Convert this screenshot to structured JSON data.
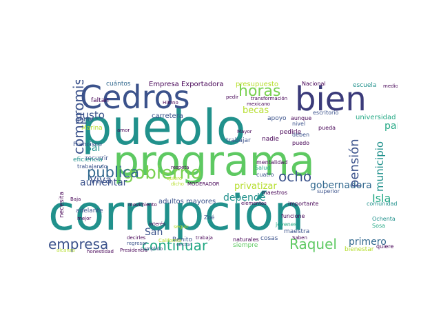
{
  "palette": {
    "purple": "#440154",
    "indigo": "#3b528b",
    "teal": "#21918c",
    "green": "#5ec962",
    "lime": "#b5de2b",
    "yellow": "#e5e419",
    "blue": "#31688e",
    "darkblue": "#2c3e7a"
  },
  "words": [
    {
      "text": "corrupción",
      "color": "#21918c"
    },
    {
      "text": "pueblo",
      "color": "#21918c"
    },
    {
      "text": "programa",
      "color": "#5ec962"
    },
    {
      "text": "Cedros",
      "color": "#3b528b"
    },
    {
      "text": "bien",
      "color": "#3b3b7a"
    },
    {
      "text": "gobierno",
      "color": "#7ad151"
    },
    {
      "text": "horas",
      "color": "#7ad151"
    },
    {
      "text": "compromiso",
      "color": "#3b528b"
    },
    {
      "text": "empresa",
      "color": "#3b528b"
    },
    {
      "text": "continuar",
      "color": "#22a884"
    },
    {
      "text": "Raquel",
      "color": "#5ec962"
    },
    {
      "text": "pública",
      "color": "#31688e"
    },
    {
      "text": "pensión",
      "color": "#3b528b"
    },
    {
      "text": "ocho",
      "color": "#3b528b"
    },
    {
      "text": "gobernadora",
      "color": "#31688e"
    },
    {
      "text": "Isla",
      "color": "#22a884"
    },
    {
      "text": "primero",
      "color": "#31688e"
    },
    {
      "text": "municipio",
      "color": "#21918c"
    },
    {
      "text": "país",
      "color": "#22a884"
    },
    {
      "text": "privatizar",
      "color": "#b5de2b"
    },
    {
      "text": "depende",
      "color": "#21918c"
    },
    {
      "text": "aumentar",
      "color": "#3b528b"
    },
    {
      "text": "gusto",
      "color": "#3b528b"
    },
    {
      "text": "Viva",
      "color": "#3b528b"
    },
    {
      "text": "Sal",
      "color": "#21918c"
    },
    {
      "text": "becas",
      "color": "#b5de2b"
    },
    {
      "text": "San",
      "color": "#3b528b"
    },
    {
      "text": "Empresa Exportadora",
      "color": "#440154"
    },
    {
      "text": "presupuesto",
      "color": "#b5de2b"
    },
    {
      "text": "escuela",
      "color": "#21918c"
    },
    {
      "text": "adultos mayores",
      "color": "#3b528b"
    },
    {
      "text": "carretera",
      "color": "#3b528b"
    },
    {
      "text": "universidad",
      "color": "#22a884"
    },
    {
      "text": "cuántos",
      "color": "#31688e"
    },
    {
      "text": "gente",
      "color": "#3b528b"
    },
    {
      "text": "apoyo",
      "color": "#3b528b"
    },
    {
      "text": "trabajar",
      "color": "#3b528b"
    },
    {
      "text": "Benito",
      "color": "#3b528b"
    },
    {
      "text": "maestra",
      "color": "#3b528b"
    },
    {
      "text": "faltan",
      "color": "#440154"
    },
    {
      "text": "Marina",
      "color": "#b5de2b"
    },
    {
      "text": "recurrir",
      "color": "#3b528b"
    },
    {
      "text": "adelante",
      "color": "#3b528b"
    },
    {
      "text": "eficiencia",
      "color": "#21918c"
    },
    {
      "text": "Francisco",
      "color": "#3b528b"
    },
    {
      "text": "trabajando",
      "color": "#3b528b"
    },
    {
      "text": "pedirle",
      "color": "#440154"
    },
    {
      "text": "nadie",
      "color": "#440154"
    },
    {
      "text": "Nacional",
      "color": "#440154"
    },
    {
      "text": "medio",
      "color": "#440154"
    },
    {
      "text": "aunque",
      "color": "#440154"
    },
    {
      "text": "escritorio",
      "color": "#3b528b"
    },
    {
      "text": "nivel",
      "color": "#3b528b"
    },
    {
      "text": "deben",
      "color": "#3b528b"
    },
    {
      "text": "puedo",
      "color": "#440154"
    },
    {
      "text": "pueda",
      "color": "#440154"
    },
    {
      "text": "superior",
      "color": "#3b528b"
    },
    {
      "text": "quiere",
      "color": "#440154"
    },
    {
      "text": "Ochenta",
      "color": "#21918c"
    },
    {
      "text": "comunidades",
      "color": "#21918c"
    },
    {
      "text": "importante",
      "color": "#440154"
    },
    {
      "text": "maestros",
      "color": "#440154"
    },
    {
      "text": "cuatro",
      "color": "#3b528b"
    },
    {
      "text": "Salud",
      "color": "#22a884"
    },
    {
      "text": "mentalidad",
      "color": "#440154"
    },
    {
      "text": "Mayor",
      "color": "#440154"
    },
    {
      "text": "cosas",
      "color": "#3b528b"
    },
    {
      "text": "funcione",
      "color": "#440154"
    },
    {
      "text": "jóvenes",
      "color": "#22a884"
    },
    {
      "text": "siempre",
      "color": "#5ec962"
    },
    {
      "text": "naturales",
      "color": "#440154"
    },
    {
      "text": "bienestar",
      "color": "#b5de2b"
    },
    {
      "text": "Sosa",
      "color": "#22a884"
    },
    {
      "text": "Zoé",
      "color": "#3b528b"
    },
    {
      "text": "sector",
      "color": "#3b528b"
    },
    {
      "text": "cumplido",
      "color": "#3b528b"
    },
    {
      "text": "interés",
      "color": "#440154"
    },
    {
      "text": "regresar",
      "color": "#3b528b"
    },
    {
      "text": "Presidencia",
      "color": "#440154"
    },
    {
      "text": "honestidad",
      "color": "#440154"
    },
    {
      "text": "movimiento",
      "color": "#440154"
    },
    {
      "text": "mejor",
      "color": "#440154"
    },
    {
      "text": "Baja",
      "color": "#440154"
    },
    {
      "text": "California",
      "color": "#b5de2b"
    },
    {
      "text": "trabaja",
      "color": "#440154"
    },
    {
      "text": "seguir",
      "color": "#b5de2b"
    },
    {
      "text": "MODERADOR",
      "color": "#440154"
    },
    {
      "text": "dicho",
      "color": "#b5de2b"
    },
    {
      "text": "quiero",
      "color": "#b5de2b"
    },
    {
      "text": "respeta",
      "color": "#440154"
    },
    {
      "text": "amor",
      "color": "#440154"
    },
    {
      "text": "Himno",
      "color": "#440154"
    },
    {
      "text": "mexicano",
      "color": "#440154"
    },
    {
      "text": "transformación",
      "color": "#440154"
    },
    {
      "text": "pedir",
      "color": "#440154"
    },
    {
      "text": "Saben",
      "color": "#440154"
    },
    {
      "text": "elementos",
      "color": "#440154"
    },
    {
      "text": "decirles",
      "color": "#440154"
    },
    {
      "text": "necesita",
      "color": "#440154"
    },
    {
      "text": "alcanza",
      "color": "#b5de2b"
    }
  ]
}
